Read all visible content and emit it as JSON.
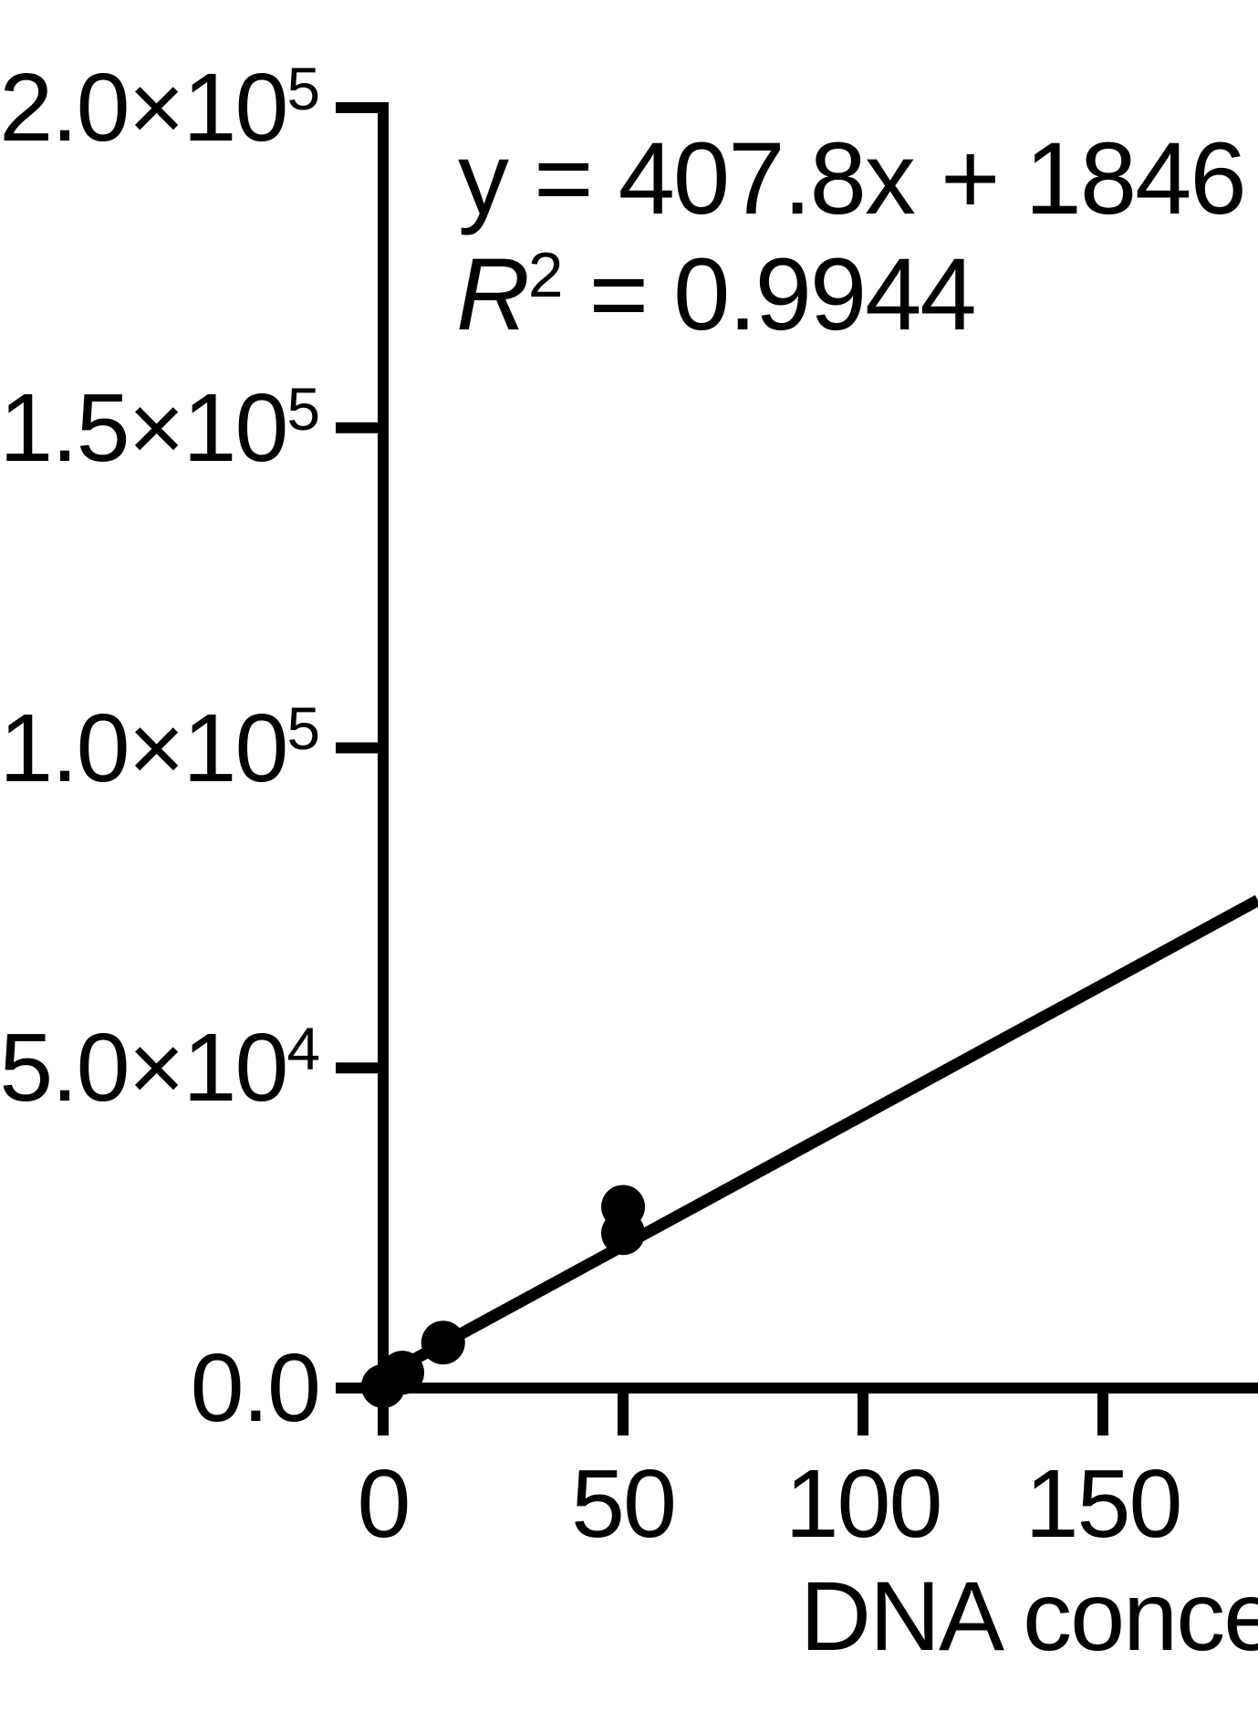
{
  "figure": {
    "background": "#ffffff",
    "ink_color": "#000000"
  },
  "annotation": {
    "equation": "y = 407.8x + 1846",
    "r_squared": {
      "base": "R",
      "exp": "2",
      "rest": " = 0.9944"
    }
  },
  "axes": {
    "x": {
      "title_visible": "DNA conce",
      "tick_labels": [
        "0",
        "50",
        "100",
        "150"
      ],
      "tick_values": [
        0,
        50,
        100,
        150
      ]
    },
    "y": {
      "tick_labels": [
        {
          "value": 200000,
          "base": "2.0×10",
          "exp": "5"
        },
        {
          "value": 150000,
          "base": "1.5×10",
          "exp": "5"
        },
        {
          "value": 100000,
          "base": "1.0×10",
          "exp": "5"
        },
        {
          "value": 50000,
          "base": "5.0×10",
          "exp": "4"
        },
        {
          "value": 0,
          "base": "0.0",
          "exp": null
        }
      ]
    }
  },
  "chart_data": {
    "type": "scatter",
    "title": "",
    "xlabel_visible": "DNA conce",
    "ylabel": "",
    "x_ticks": [
      0,
      50,
      100,
      150
    ],
    "y_ticks": [
      0,
      50000,
      100000,
      150000,
      200000
    ],
    "xlim_visible": [
      0,
      182
    ],
    "ylim": [
      0,
      200000
    ],
    "grid": false,
    "legend": false,
    "marker_color": "#000000",
    "line_color": "#000000",
    "points": [
      {
        "x": 0,
        "y": 300
      },
      {
        "x": 4,
        "y": 2400
      },
      {
        "x": 12.5,
        "y": 7100
      },
      {
        "x": 50,
        "y": 24200
      },
      {
        "x": 50,
        "y": 28300
      }
    ],
    "fit_line": {
      "slope": 407.8,
      "intercept": 1846,
      "x_start": 0,
      "x_end": 182.3
    },
    "equation_text": "y = 407.8x + 1846",
    "r2": 0.9944
  }
}
